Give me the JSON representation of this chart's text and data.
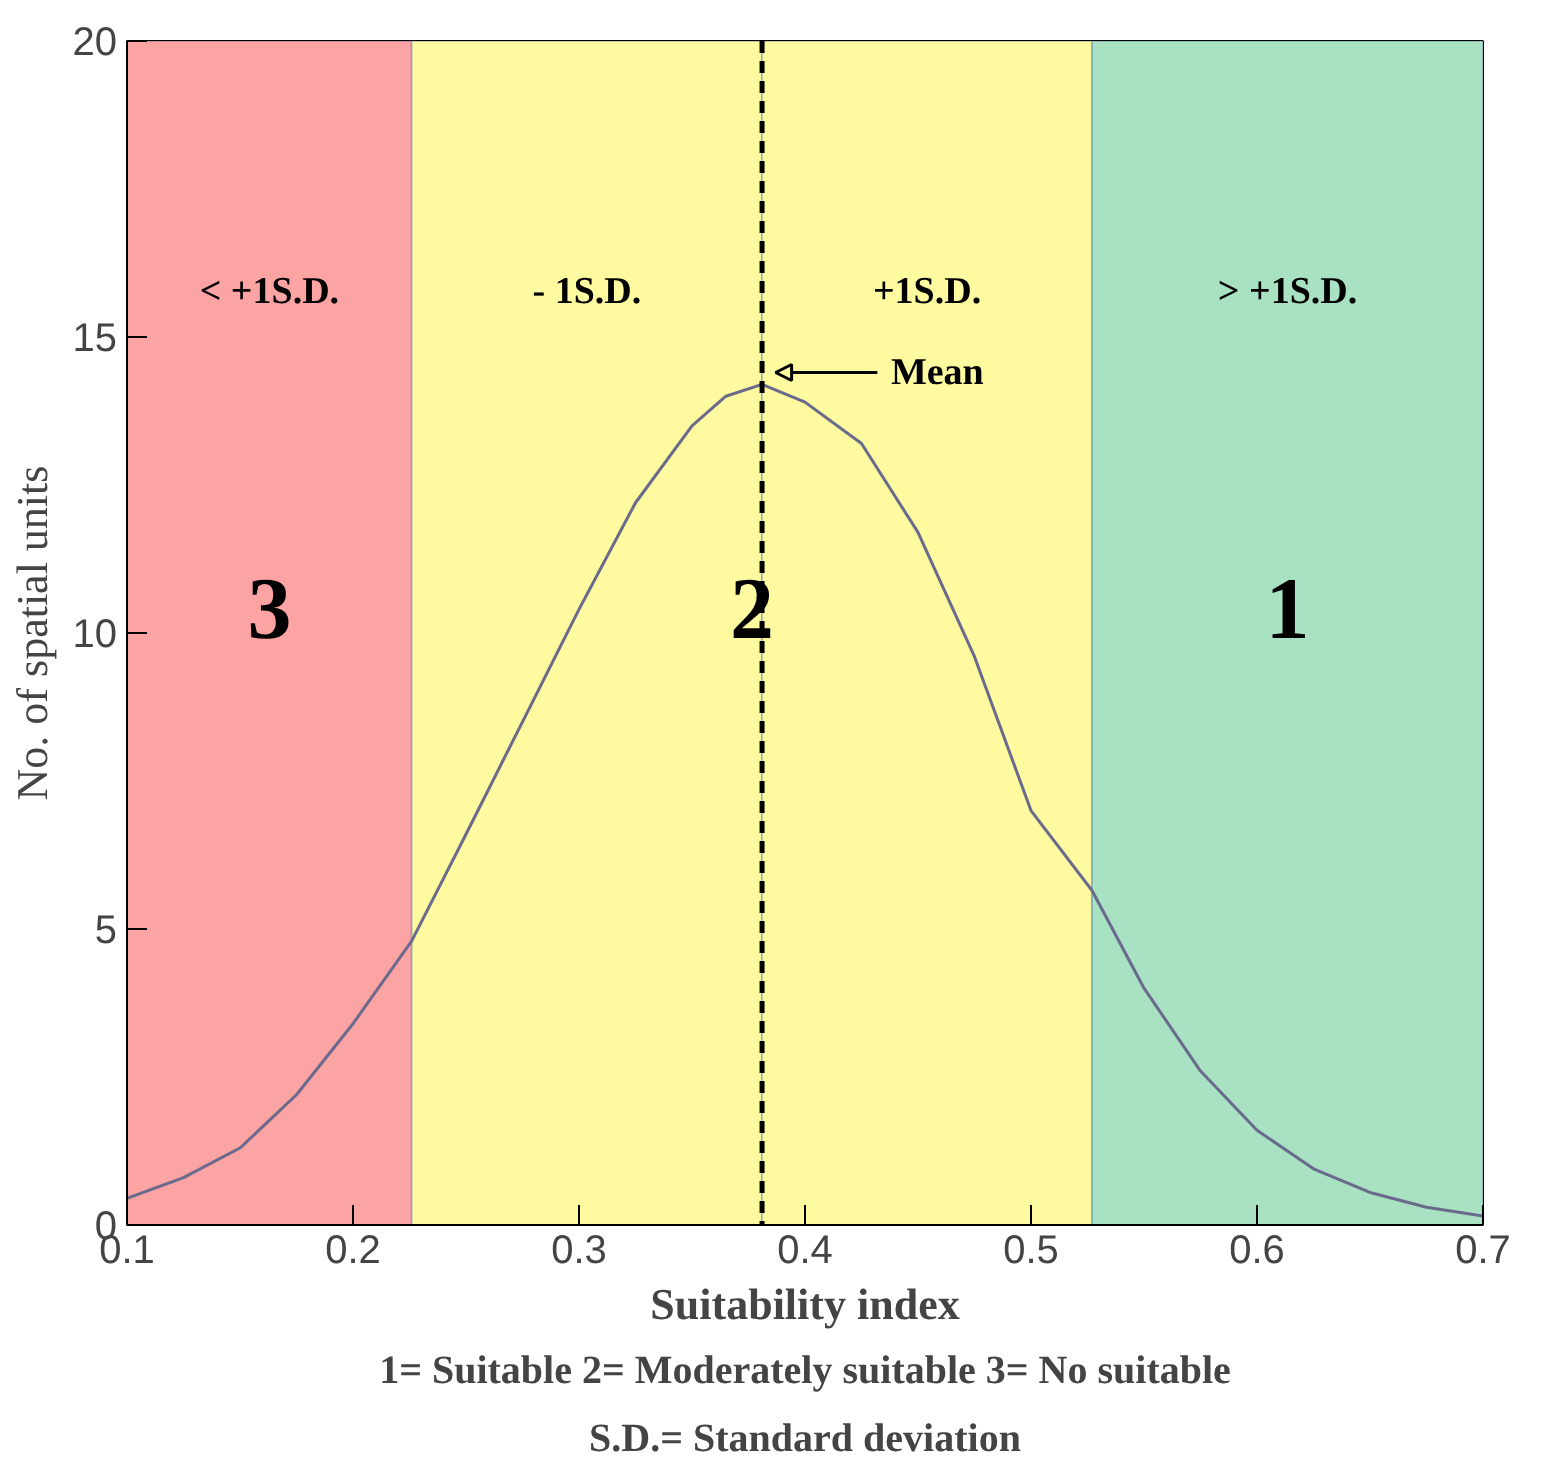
{
  "chart_data": {
    "type": "line",
    "xlabel": "Suitability index",
    "ylabel": "No. of spatial units",
    "x": [
      0.1,
      0.125,
      0.15,
      0.175,
      0.2,
      0.226,
      0.25,
      0.275,
      0.3,
      0.325,
      0.35,
      0.365,
      0.381,
      0.4,
      0.425,
      0.45,
      0.475,
      0.5,
      0.527,
      0.55,
      0.575,
      0.6,
      0.625,
      0.65,
      0.675,
      0.7
    ],
    "series": [
      {
        "color": "#6a6a8c",
        "values": [
          0.45,
          0.8,
          1.3,
          2.2,
          3.4,
          4.8,
          6.6,
          8.5,
          10.4,
          12.2,
          13.5,
          14.0,
          14.2,
          13.9,
          13.2,
          11.7,
          9.6,
          7.0,
          5.65,
          4.0,
          2.6,
          1.6,
          0.95,
          0.55,
          0.3,
          0.15
        ]
      }
    ],
    "xlim": [
      0.1,
      0.7
    ],
    "ylim": [
      0,
      20
    ],
    "xticks": [
      0.1,
      0.2,
      0.3,
      0.4,
      0.5,
      0.6,
      0.7
    ],
    "yticks": [
      0,
      5,
      10,
      15,
      20
    ],
    "bands": [
      {
        "axis": "x",
        "from": 0.1,
        "to": 0.226,
        "label": "< +1S.D.",
        "color": "#fca3a3"
      },
      {
        "axis": "x",
        "from": 0.226,
        "to": 0.381,
        "label": "- 1S.D.",
        "color": "#fdfa9f"
      },
      {
        "axis": "x",
        "from": 0.381,
        "to": 0.527,
        "label": "+1S.D.",
        "color": "#fdfa9f"
      },
      {
        "axis": "x",
        "from": 0.527,
        "to": 0.7,
        "label": "> +1S.D.",
        "color": "#a8e2c2"
      }
    ],
    "ref_lines": [
      {
        "axis": "x",
        "value": 0.381,
        "label": "Mean",
        "color": "#000000",
        "line_style": "dashed"
      }
    ],
    "annotations": [
      "3",
      "2",
      "1",
      "1= Suitable 2= Moderately suitable 3= No suitable",
      "S.D.= Standard deviation"
    ]
  }
}
